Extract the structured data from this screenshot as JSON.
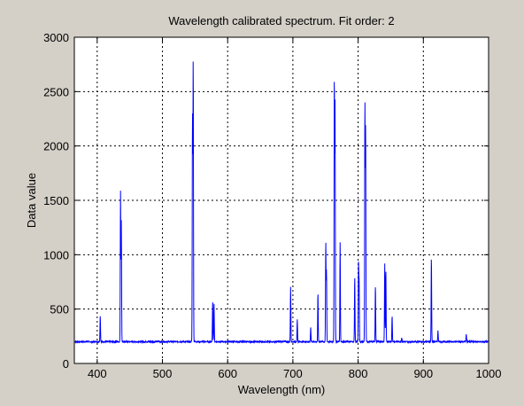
{
  "chart_data": {
    "type": "line",
    "title": "Wavelength calibrated spectrum. Fit order: 2",
    "xlabel": "Wavelength (nm)",
    "ylabel": "Data value",
    "xlim": [
      365,
      1000
    ],
    "ylim": [
      0,
      3000
    ],
    "xticks": [
      400,
      500,
      600,
      700,
      800,
      900,
      1000
    ],
    "yticks": [
      0,
      500,
      1000,
      1500,
      2000,
      2500,
      3000
    ],
    "grid": true,
    "colors": {
      "figure_bg": "#d4d0c8",
      "axes_bg": "#ffffff",
      "series": "#0000ff",
      "grid": "#000000"
    },
    "baseline": 200,
    "series": [
      {
        "line_color": "#0000ff",
        "peaks": [
          {
            "x": 404.7,
            "y": 440
          },
          {
            "x": 435.8,
            "y": 1580
          },
          {
            "x": 437.0,
            "y": 1310
          },
          {
            "x": 546.1,
            "y": 2270
          },
          {
            "x": 547.2,
            "y": 2780
          },
          {
            "x": 577.0,
            "y": 570
          },
          {
            "x": 579.1,
            "y": 560
          },
          {
            "x": 696.5,
            "y": 700
          },
          {
            "x": 706.7,
            "y": 400
          },
          {
            "x": 727.3,
            "y": 330
          },
          {
            "x": 738.4,
            "y": 650
          },
          {
            "x": 750.4,
            "y": 1110
          },
          {
            "x": 751.5,
            "y": 850
          },
          {
            "x": 763.5,
            "y": 2650
          },
          {
            "x": 764.6,
            "y": 2380
          },
          {
            "x": 772.4,
            "y": 1110
          },
          {
            "x": 794.8,
            "y": 800
          },
          {
            "x": 800.6,
            "y": 900
          },
          {
            "x": 801.5,
            "y": 720
          },
          {
            "x": 810.4,
            "y": 2400
          },
          {
            "x": 811.5,
            "y": 2180
          },
          {
            "x": 826.5,
            "y": 720
          },
          {
            "x": 840.8,
            "y": 920
          },
          {
            "x": 842.5,
            "y": 860
          },
          {
            "x": 852.1,
            "y": 440
          },
          {
            "x": 866.8,
            "y": 240
          },
          {
            "x": 912.3,
            "y": 980
          },
          {
            "x": 922.4,
            "y": 300
          },
          {
            "x": 965.8,
            "y": 270
          }
        ]
      }
    ]
  }
}
